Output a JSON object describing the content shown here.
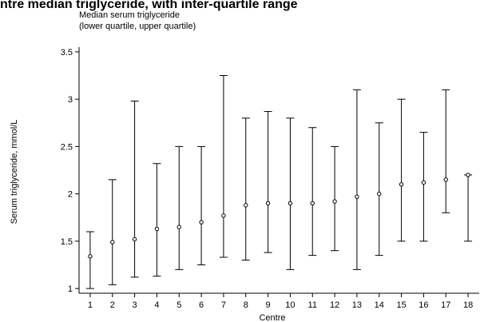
{
  "header": {
    "partial_title": "ntre median triglyceride, with inter-quartile range"
  },
  "chart_data": {
    "type": "errorbar",
    "title_line1": "Median serum triglyceride",
    "title_line2": "(lower quartile, upper quartile)",
    "xlabel": "Centre",
    "ylabel": "Serum triglyceride, mmol/L",
    "ylim": [
      0.95,
      3.55
    ],
    "xlim": [
      0.5,
      18.5
    ],
    "yticks": [
      "1",
      "1.5",
      "2",
      "2.5",
      "3",
      "3.5"
    ],
    "categories": [
      "1",
      "2",
      "3",
      "4",
      "5",
      "6",
      "7",
      "8",
      "9",
      "10",
      "11",
      "12",
      "13",
      "14",
      "15",
      "16",
      "17",
      "18"
    ],
    "median": [
      1.34,
      1.49,
      1.52,
      1.63,
      1.65,
      1.7,
      1.77,
      1.88,
      1.9,
      1.9,
      1.9,
      1.92,
      1.97,
      2.0,
      2.1,
      2.12,
      2.15,
      2.2
    ],
    "lower_quartile": [
      1.0,
      1.04,
      1.12,
      1.13,
      1.2,
      1.25,
      1.33,
      1.3,
      1.38,
      1.2,
      1.35,
      1.4,
      1.2,
      1.35,
      1.5,
      1.5,
      1.8,
      1.5
    ],
    "upper_quartile": [
      1.6,
      2.15,
      2.98,
      2.32,
      2.5,
      2.5,
      3.25,
      2.8,
      2.87,
      2.8,
      2.7,
      2.5,
      3.1,
      2.75,
      3.0,
      2.65,
      3.1,
      2.2
    ]
  }
}
